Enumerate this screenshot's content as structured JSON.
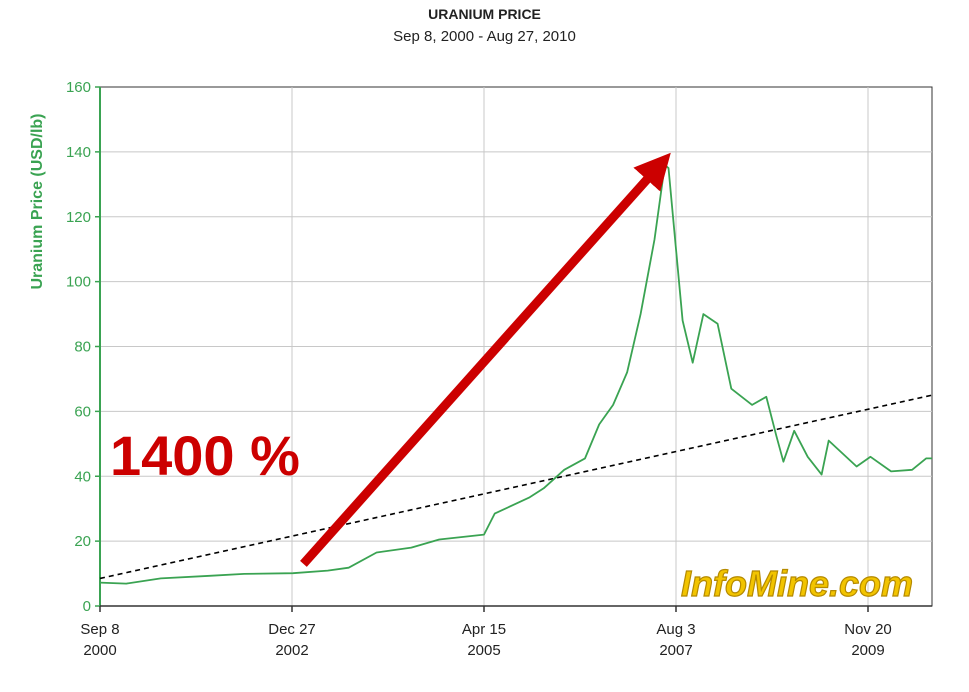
{
  "chart_data": {
    "type": "line",
    "title": "URANIUM PRICE",
    "subtitle": "Sep 8, 2000 - Aug 27, 2010",
    "ylabel": "Uranium Price (USD/lb)",
    "xlabel": "",
    "ylim": [
      0,
      160
    ],
    "xlim": [
      "2000-09-08",
      "2010-08-27"
    ],
    "yticks": [
      0,
      20,
      40,
      60,
      80,
      100,
      120,
      140,
      160
    ],
    "xticks": [
      {
        "date": "2000-09-08",
        "line1": "Sep 8",
        "line2": "2000"
      },
      {
        "date": "2002-12-27",
        "line1": "Dec 27",
        "line2": "2002"
      },
      {
        "date": "2005-04-15",
        "line1": "Apr 15",
        "line2": "2005"
      },
      {
        "date": "2007-08-03",
        "line1": "Aug 3",
        "line2": "2007"
      },
      {
        "date": "2009-11-20",
        "line1": "Nov 20",
        "line2": "2009"
      }
    ],
    "grid": true,
    "series": [
      {
        "color": "#3aa352",
        "points": [
          [
            "2000-09-08",
            7.2
          ],
          [
            "2001-01-01",
            6.9
          ],
          [
            "2001-06-01",
            8.5
          ],
          [
            "2002-01-01",
            9.3
          ],
          [
            "2002-06-01",
            9.9
          ],
          [
            "2003-01-01",
            10.1
          ],
          [
            "2003-06-01",
            10.9
          ],
          [
            "2003-09-01",
            11.8
          ],
          [
            "2004-01-01",
            16.5
          ],
          [
            "2004-06-01",
            18.0
          ],
          [
            "2004-10-01",
            20.5
          ],
          [
            "2005-04-15",
            22.0
          ],
          [
            "2005-06-01",
            28.5
          ],
          [
            "2005-11-01",
            33.5
          ],
          [
            "2006-01-01",
            36.3
          ],
          [
            "2006-04-01",
            42.0
          ],
          [
            "2006-07-01",
            45.5
          ],
          [
            "2006-09-01",
            56.0
          ],
          [
            "2006-11-01",
            62.0
          ],
          [
            "2007-01-01",
            72.0
          ],
          [
            "2007-03-01",
            90.0
          ],
          [
            "2007-05-01",
            113.0
          ],
          [
            "2007-06-15",
            136.0
          ],
          [
            "2007-07-01",
            135.0
          ],
          [
            "2007-09-01",
            88.0
          ],
          [
            "2007-10-15",
            75.0
          ],
          [
            "2007-12-01",
            90.0
          ],
          [
            "2008-02-01",
            87.0
          ],
          [
            "2008-04-01",
            67.0
          ],
          [
            "2008-07-01",
            62.0
          ],
          [
            "2008-09-01",
            64.5
          ],
          [
            "2008-10-15",
            52.5
          ],
          [
            "2008-11-15",
            44.5
          ],
          [
            "2009-01-01",
            54.0
          ],
          [
            "2009-03-01",
            46.0
          ],
          [
            "2009-05-01",
            40.5
          ],
          [
            "2009-06-01",
            51.0
          ],
          [
            "2009-08-01",
            47.0
          ],
          [
            "2009-10-01",
            43.0
          ],
          [
            "2009-12-01",
            46.0
          ],
          [
            "2010-03-01",
            41.5
          ],
          [
            "2010-06-01",
            42.0
          ],
          [
            "2010-08-01",
            45.5
          ],
          [
            "2010-08-27",
            45.5
          ]
        ]
      }
    ],
    "trendline": {
      "color": "#000000",
      "style": "dashed",
      "from": [
        "2000-09-08",
        8.5
      ],
      "to": [
        "2010-08-27",
        65.0
      ]
    },
    "annotations": [
      {
        "text": "1400 %",
        "color": "#cc0000",
        "kind": "label"
      },
      {
        "kind": "arrow",
        "color": "#cc0000",
        "from": [
          "2003-02-15",
          13.0
        ],
        "to": [
          "2007-05-25",
          136.0
        ]
      },
      {
        "text": "InfoMine.com",
        "color": "#f2c400",
        "kind": "watermark"
      }
    ]
  }
}
